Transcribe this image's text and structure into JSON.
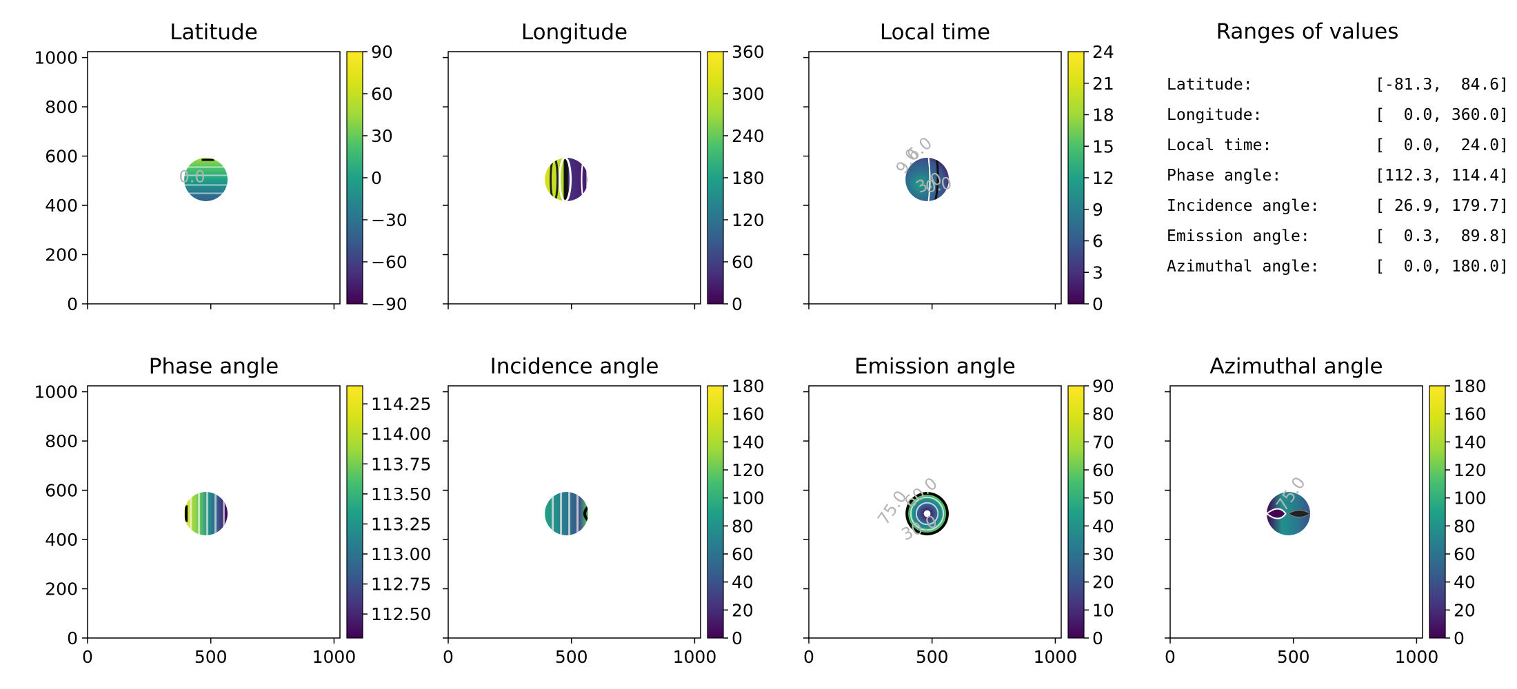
{
  "chart_data": [
    {
      "type": "heatmap",
      "title": "Latitude",
      "colorbar": {
        "min": -90,
        "max": 90,
        "ticks": [
          "90",
          "60",
          "30",
          "0",
          "−30",
          "−60",
          "−90"
        ]
      },
      "xlim": [
        0,
        1024
      ],
      "ylim": [
        0,
        1024
      ],
      "xticks": [],
      "yticks": [
        "0",
        "200",
        "400",
        "600",
        "800",
        "1000"
      ],
      "disk": {
        "center": [
          480,
          505
        ],
        "radius": 88
      },
      "contour_labels": [
        "0.0"
      ]
    },
    {
      "type": "heatmap",
      "title": "Longitude",
      "colorbar": {
        "min": 0,
        "max": 360,
        "ticks": [
          "360",
          "300",
          "240",
          "180",
          "120",
          "60",
          "0"
        ]
      },
      "xlim": [
        0,
        1024
      ],
      "ylim": [
        0,
        1024
      ],
      "xticks": [],
      "yticks": [],
      "disk": {
        "center": [
          480,
          505
        ],
        "radius": 88
      },
      "contour_labels": []
    },
    {
      "type": "heatmap",
      "title": "Local time",
      "colorbar": {
        "min": 0,
        "max": 24,
        "ticks": [
          "24",
          "21",
          "18",
          "15",
          "12",
          "9",
          "6",
          "3",
          "0"
        ]
      },
      "xlim": [
        0,
        1024
      ],
      "ylim": [
        0,
        1024
      ],
      "xticks": [],
      "yticks": [],
      "disk": {
        "center": [
          480,
          505
        ],
        "radius": 88
      },
      "contour_labels": [
        "9.0",
        "6.0",
        "3.0",
        "0.0"
      ]
    },
    {
      "type": "heatmap",
      "title": "Phase angle",
      "colorbar": {
        "min": 112.3,
        "max": 114.4,
        "ticks": [
          "114.25",
          "114.00",
          "113.75",
          "113.50",
          "113.25",
          "113.00",
          "112.75",
          "112.50"
        ]
      },
      "xlim": [
        0,
        1024
      ],
      "ylim": [
        0,
        1024
      ],
      "xticks": [
        "0",
        "500",
        "1000"
      ],
      "yticks": [
        "0",
        "200",
        "400",
        "600",
        "800",
        "1000"
      ],
      "disk": {
        "center": [
          480,
          505
        ],
        "radius": 88
      },
      "contour_labels": []
    },
    {
      "type": "heatmap",
      "title": "Incidence angle",
      "colorbar": {
        "min": 0,
        "max": 180,
        "ticks": [
          "180",
          "160",
          "140",
          "120",
          "100",
          "80",
          "60",
          "40",
          "20",
          "0"
        ]
      },
      "xlim": [
        0,
        1024
      ],
      "ylim": [
        0,
        1024
      ],
      "xticks": [
        "0",
        "500",
        "1000"
      ],
      "yticks": [],
      "disk": {
        "center": [
          480,
          505
        ],
        "radius": 88
      },
      "contour_labels": []
    },
    {
      "type": "heatmap",
      "title": "Emission angle",
      "colorbar": {
        "min": 0,
        "max": 90,
        "ticks": [
          "90",
          "80",
          "70",
          "60",
          "50",
          "40",
          "30",
          "20",
          "10",
          "0"
        ]
      },
      "xlim": [
        0,
        1024
      ],
      "ylim": [
        0,
        1024
      ],
      "xticks": [
        "0",
        "500",
        "1000"
      ],
      "yticks": [],
      "disk": {
        "center": [
          480,
          505
        ],
        "radius": 88
      },
      "contour_labels": [
        "75.0",
        "60.0",
        "30.0"
      ]
    },
    {
      "type": "heatmap",
      "title": "Azimuthal angle",
      "colorbar": {
        "min": 0,
        "max": 180,
        "ticks": [
          "180",
          "160",
          "140",
          "120",
          "100",
          "80",
          "60",
          "40",
          "20",
          "0"
        ]
      },
      "xlim": [
        0,
        1024
      ],
      "ylim": [
        0,
        1024
      ],
      "xticks": [
        "0",
        "500",
        "1000"
      ],
      "yticks": [],
      "disk": {
        "center": [
          480,
          505
        ],
        "radius": 88
      },
      "contour_labels": [
        "75.0"
      ]
    }
  ],
  "ranges_panel": {
    "title": "Ranges of values",
    "rows": [
      {
        "label": "Latitude:",
        "value": "[-81.3,  84.6]"
      },
      {
        "label": "Longitude:",
        "value": "[  0.0, 360.0]"
      },
      {
        "label": "Local time:",
        "value": "[  0.0,  24.0]"
      },
      {
        "label": "Phase angle:",
        "value": "[112.3, 114.4]"
      },
      {
        "label": "Incidence angle:",
        "value": "[ 26.9, 179.7]"
      },
      {
        "label": "Emission angle:",
        "value": "[  0.3,  89.8]"
      },
      {
        "label": "Azimuthal angle:",
        "value": "[  0.0, 180.0]"
      }
    ]
  },
  "colors": {
    "viridis_low": "#440154",
    "viridis_mid": "#21918c",
    "viridis_high": "#fde725",
    "contour_label": "#b4b4b4"
  }
}
